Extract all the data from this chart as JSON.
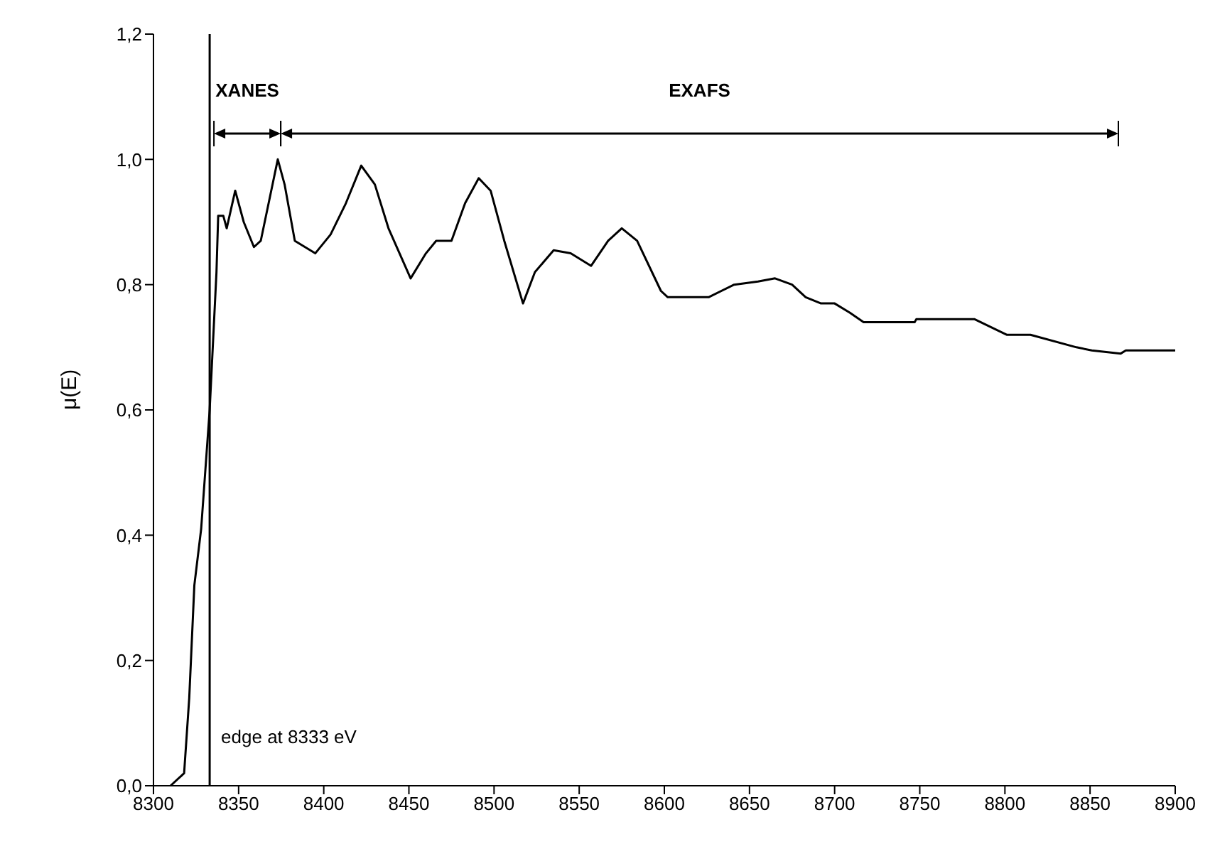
{
  "chart_data": {
    "type": "line",
    "ylabel": "μ(E)",
    "x": [
      8310,
      8318,
      8321,
      8324,
      8328,
      8333,
      8335,
      8337,
      8338,
      8341,
      8343,
      8348,
      8353,
      8359,
      8363,
      8373,
      8377,
      8383,
      8395,
      8404,
      8413,
      8422,
      8430,
      8438,
      8451,
      8460,
      8466,
      8475,
      8483,
      8491,
      8498,
      8506,
      8517,
      8524,
      8535,
      8545,
      8557,
      8567,
      8575,
      8584,
      8598,
      8602,
      8626,
      8641,
      8655,
      8665,
      8675,
      8683,
      8692,
      8700,
      8709,
      8717,
      8747,
      8748,
      8782,
      8801,
      8815,
      8842,
      8851,
      8868,
      8871,
      8900
    ],
    "series": [
      {
        "color": "#000000",
        "values": [
          0,
          0.02,
          0.14,
          0.32,
          0.41,
          0.6,
          0.71,
          0.82,
          0.91,
          0.91,
          0.89,
          0.95,
          0.9,
          0.86,
          0.87,
          1.0,
          0.96,
          0.87,
          0.85,
          0.88,
          0.93,
          0.99,
          0.96,
          0.89,
          0.81,
          0.85,
          0.87,
          0.87,
          0.93,
          0.97,
          0.95,
          0.87,
          0.77,
          0.82,
          0.855,
          0.85,
          0.83,
          0.87,
          0.89,
          0.87,
          0.79,
          0.78,
          0.78,
          0.8,
          0.805,
          0.81,
          0.8,
          0.78,
          0.77,
          0.77,
          0.755,
          0.74,
          0.74,
          0.745,
          0.745,
          0.72,
          0.72,
          0.7,
          0.695,
          0.69,
          0.695,
          0.695
        ]
      }
    ],
    "xlim": [
      8300,
      8900
    ],
    "xticks": [
      8300,
      8350,
      8400,
      8450,
      8500,
      8550,
      8600,
      8650,
      8700,
      8750,
      8800,
      8850,
      8900
    ],
    "ylim": [
      0,
      1.2
    ],
    "yticks": [
      {
        "value": 0,
        "label": "0,0"
      },
      {
        "value": 0.2,
        "label": "0,2"
      },
      {
        "value": 0.4,
        "label": "0,4"
      },
      {
        "value": 0.6,
        "label": "0,6"
      },
      {
        "value": 0.8,
        "label": "0,8"
      },
      {
        "value": 1.0,
        "label": "1,0"
      },
      {
        "value": 1.2,
        "label": "1,2"
      }
    ],
    "ref_lines": [
      {
        "axis": "x",
        "value": 8333,
        "label": "edge at 8333 eV",
        "color": "#000000"
      }
    ],
    "annotations": [
      "XANES",
      "EXAFS"
    ],
    "marker": "none",
    "line_style": "solid"
  }
}
